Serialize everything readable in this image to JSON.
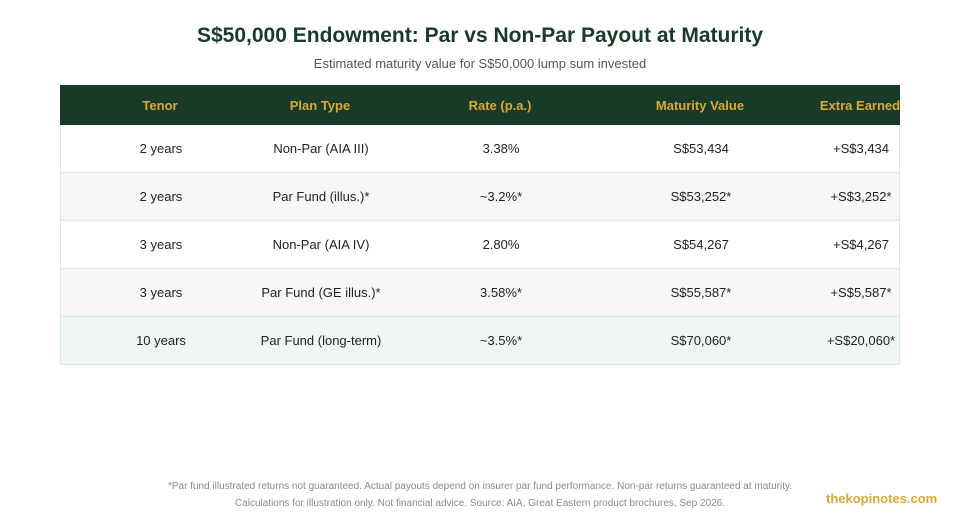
{
  "header": {
    "title": "S$50,000 Endowment: Par vs Non-Par Payout at Maturity",
    "subtitle": "Estimated maturity value for S$50,000 lump sum invested"
  },
  "table": {
    "columns": [
      "Tenor",
      "Plan Type",
      "Rate (p.a.)",
      "Maturity Value",
      "Extra Earned"
    ],
    "rows": [
      [
        "2 years",
        "Non-Par (AIA III)",
        "3.38%",
        "S$53,434",
        "+S$3,434"
      ],
      [
        "2 years",
        "Par Fund (illus.)*",
        "~3.2%*",
        "S$53,252*",
        "+S$3,252*"
      ],
      [
        "3 years",
        "Non-Par (AIA IV)",
        "2.80%",
        "S$54,267",
        "+S$4,267"
      ],
      [
        "3 years",
        "Par Fund (GE illus.)*",
        "3.58%*",
        "S$55,587*",
        "+S$5,587*"
      ],
      [
        "10 years",
        "Par Fund (long-term)",
        "~3.5%*",
        "S$70,060*",
        "+S$20,060*"
      ]
    ]
  },
  "footer": {
    "note1": "*Par fund illustrated returns not guaranteed. Actual payouts depend on insurer par fund performance. Non-par returns guaranteed at maturity.",
    "note2": "Calculations for illustration only. Not financial advice. Source: AIA, Great Eastern product brochures, Sep 2026.",
    "brand": "thekopinotes.com"
  },
  "colors": {
    "header_bg": "#1a3a28",
    "header_text": "#d9a93a",
    "brand": "#d9a93a"
  }
}
